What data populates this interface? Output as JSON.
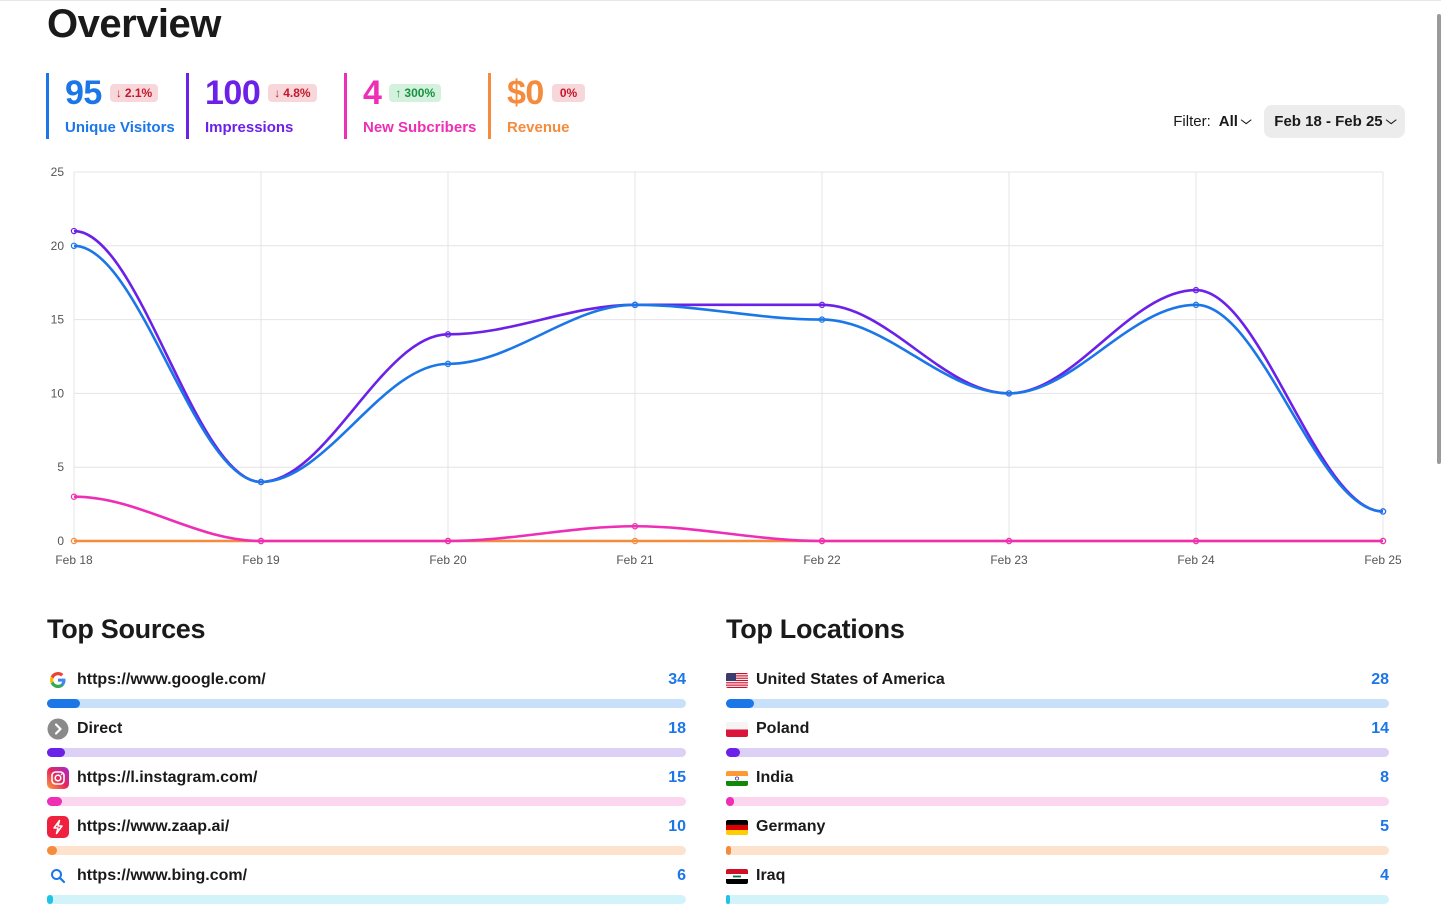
{
  "page": {
    "title": "Overview"
  },
  "stats": [
    {
      "value": "95",
      "badge": "2.1%",
      "direction": "down",
      "label": "Unique Visitors",
      "color": "#1b76e8"
    },
    {
      "value": "100",
      "badge": "4.8%",
      "direction": "down",
      "label": "Impressions",
      "color": "#6b21e8"
    },
    {
      "value": "4",
      "badge": "300%",
      "direction": "up",
      "label": "New Subcribers",
      "color": "#ee2eb5"
    },
    {
      "value": "$0",
      "badge": "0%",
      "direction": "none",
      "label": "Revenue",
      "color": "#f58b3c"
    }
  ],
  "filter": {
    "label": "Filter:",
    "value": "All",
    "date_range": "Feb 18 - Feb 25"
  },
  "chart_data": {
    "type": "line",
    "x": [
      "Feb 18",
      "Feb 19",
      "Feb 20",
      "Feb 21",
      "Feb 22",
      "Feb 23",
      "Feb 24",
      "Feb 25"
    ],
    "ylim": [
      0,
      25
    ],
    "yticks": [
      0,
      5,
      10,
      15,
      20,
      25
    ],
    "grid": true,
    "series": [
      {
        "color": "#f58b3c",
        "values": [
          0,
          0,
          0,
          0,
          0,
          0,
          0,
          0
        ]
      },
      {
        "color": "#ee2eb5",
        "values": [
          3,
          0,
          0,
          1,
          0,
          0,
          0,
          0
        ]
      },
      {
        "color": "#6b21e8",
        "values": [
          21,
          4,
          14,
          16,
          16,
          10,
          17,
          2
        ]
      },
      {
        "color": "#1b76e8",
        "values": [
          20,
          4,
          12,
          16,
          15,
          10,
          16,
          2
        ]
      }
    ]
  },
  "top_sources": {
    "title": "Top Sources",
    "items": [
      {
        "icon": "google-icon",
        "label": "https://www.google.com/",
        "count": "34",
        "fraction": 0.052,
        "color": "#1b76e8",
        "track": "#c9e0fb"
      },
      {
        "icon": "direct-arrow-icon",
        "label": "Direct",
        "count": "18",
        "fraction": 0.028,
        "color": "#6b21e8",
        "track": "#ddd0f7"
      },
      {
        "icon": "instagram-icon",
        "label": "https://l.instagram.com/",
        "count": "15",
        "fraction": 0.023,
        "color": "#ee2eb5",
        "track": "#fcd5ef"
      },
      {
        "icon": "zaap-icon",
        "label": "https://www.zaap.ai/",
        "count": "10",
        "fraction": 0.016,
        "color": "#f58b3c",
        "track": "#fde2cd"
      },
      {
        "icon": "bing-search-icon",
        "label": "https://www.bing.com/",
        "count": "6",
        "fraction": 0.009,
        "color": "#1ec3e6",
        "track": "#d3f3fa"
      }
    ]
  },
  "top_locations": {
    "title": "Top Locations",
    "items": [
      {
        "icon": "usa-flag-icon",
        "label": "United States of America",
        "count": "28",
        "fraction": 0.042,
        "color": "#1b76e8",
        "track": "#c9e0fb"
      },
      {
        "icon": "poland-flag-icon",
        "label": "Poland",
        "count": "14",
        "fraction": 0.021,
        "color": "#6b21e8",
        "track": "#ddd0f7"
      },
      {
        "icon": "india-flag-icon",
        "label": "India",
        "count": "8",
        "fraction": 0.012,
        "color": "#ee2eb5",
        "track": "#fcd5ef"
      },
      {
        "icon": "germany-flag-icon",
        "label": "Germany",
        "count": "5",
        "fraction": 0.008,
        "color": "#f58b3c",
        "track": "#fde2cd"
      },
      {
        "icon": "iraq-flag-icon",
        "label": "Iraq",
        "count": "4",
        "fraction": 0.006,
        "color": "#1ec3e6",
        "track": "#d3f3fa"
      }
    ]
  }
}
